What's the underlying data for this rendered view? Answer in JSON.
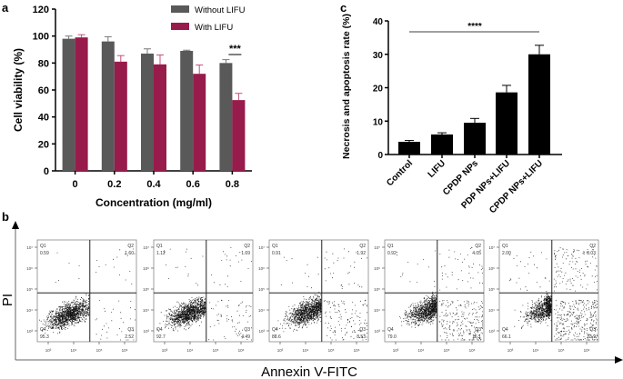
{
  "panel_labels": {
    "a": "a",
    "b": "b",
    "c": "c"
  },
  "chart_data": [
    {
      "panel": "a",
      "type": "bar",
      "categories": [
        "0",
        "0.2",
        "0.4",
        "0.6",
        "0.8"
      ],
      "xlabel": "Concentration (mg/ml)",
      "ylabel": "Cell viability (%)",
      "ylim": [
        0,
        120
      ],
      "yticks": [
        0,
        20,
        40,
        60,
        80,
        100,
        120
      ],
      "legend": "top-right",
      "series": [
        {
          "name": "Without LIFU",
          "color": "#595959",
          "values": [
            98,
            96,
            87,
            89,
            80
          ],
          "errors": [
            2,
            3.5,
            3.5,
            0.5,
            2.5
          ]
        },
        {
          "name": "With LIFU",
          "color": "#971b4b",
          "values": [
            99,
            81,
            79,
            72,
            52.5
          ],
          "errors": [
            2,
            4.5,
            7,
            6.5,
            5
          ]
        }
      ],
      "annotation": {
        "text": "***",
        "category": "0.8"
      }
    },
    {
      "panel": "c",
      "type": "bar",
      "categories": [
        "Control",
        "LIFU",
        "CPDP NPs",
        "PDP NPs+LIFU",
        "CPDP NPs+LIFU"
      ],
      "ylabel": "Necrosis and apoptosis rate (%)",
      "ylim": [
        0,
        40
      ],
      "yticks": [
        0,
        10,
        20,
        30,
        40
      ],
      "color": "#000000",
      "values": [
        3.8,
        6.0,
        9.5,
        18.6,
        30.0
      ],
      "errors": [
        0.4,
        0.5,
        1.3,
        2.1,
        2.7
      ],
      "annotation": {
        "text": "****",
        "from": "Control",
        "to": "CPDP NPs+LIFU"
      }
    },
    {
      "panel": "b",
      "type": "scatter",
      "xlabel": "Annexin V-FITC",
      "ylabel": "PI",
      "tick_labels": [
        "10³",
        "10⁴",
        "10⁵",
        "10⁶",
        "10⁷"
      ],
      "plots": [
        {
          "Q1": "0.59",
          "Q2": "1.60",
          "Q3": "2.52",
          "Q4": "95.3"
        },
        {
          "Q1": "1.12",
          "Q2": "1.69",
          "Q3": "4.49",
          "Q4": "92.7"
        },
        {
          "Q1": "0.91",
          "Q2": "1.92",
          "Q3": "8.53",
          "Q4": "88.6"
        },
        {
          "Q1": "0.92",
          "Q2": "4.05",
          "Q3": "16.1",
          "Q4": "79.0"
        },
        {
          "Q1": "2.00",
          "Q2": "8.03",
          "Q3": "23.9",
          "Q4": "66.1"
        }
      ]
    }
  ]
}
